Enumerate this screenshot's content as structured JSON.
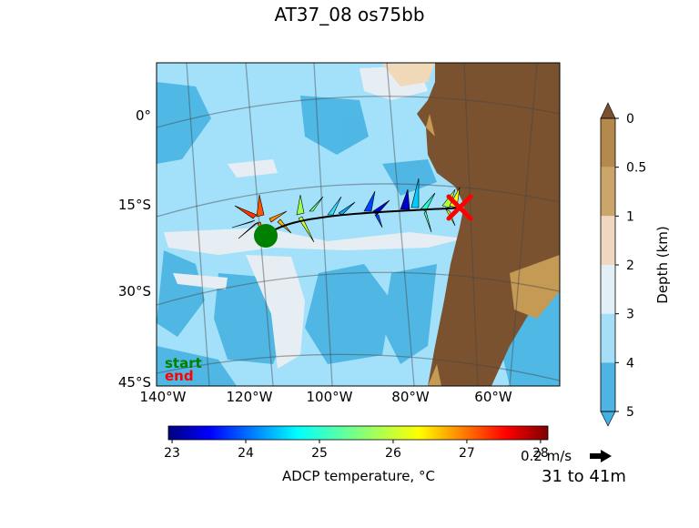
{
  "title": "AT37_08 os75bb",
  "map": {
    "lat_ticks": [
      "0°",
      "15°S",
      "30°S",
      "45°S"
    ],
    "lon_ticks": [
      "140°W",
      "120°W",
      "100°W",
      "80°W",
      "60°W"
    ],
    "start_label": "start",
    "end_label": "end",
    "start_color": "#008000",
    "end_color": "#ff0000",
    "ocean_colors": [
      "#a3e1fb",
      "#42b0e0",
      "#e6eef4"
    ],
    "land_colors": [
      "#7a5230",
      "#c49a55",
      "#efd9b9"
    ]
  },
  "chart_data": [
    {
      "type": "heatmap",
      "title": "Depth (km)",
      "colorbar_labels": [
        "0",
        "0.5",
        "1",
        "2",
        "3",
        "4",
        "5"
      ],
      "colors": [
        "#b5894c",
        "#cca56a",
        "#efd8bf",
        "#e3eff7",
        "#a4dff7",
        "#4fb4e4"
      ]
    },
    {
      "type": "heatmap",
      "title": "ADCP temperature, °C",
      "colorbar_labels": [
        "23",
        "24",
        "25",
        "26",
        "27",
        "28"
      ],
      "range": [
        22.95,
        28.1
      ],
      "colormap": "jet"
    }
  ],
  "legend": {
    "scale_label": "0.2 m/s",
    "depth_range": "31 to 41m"
  }
}
